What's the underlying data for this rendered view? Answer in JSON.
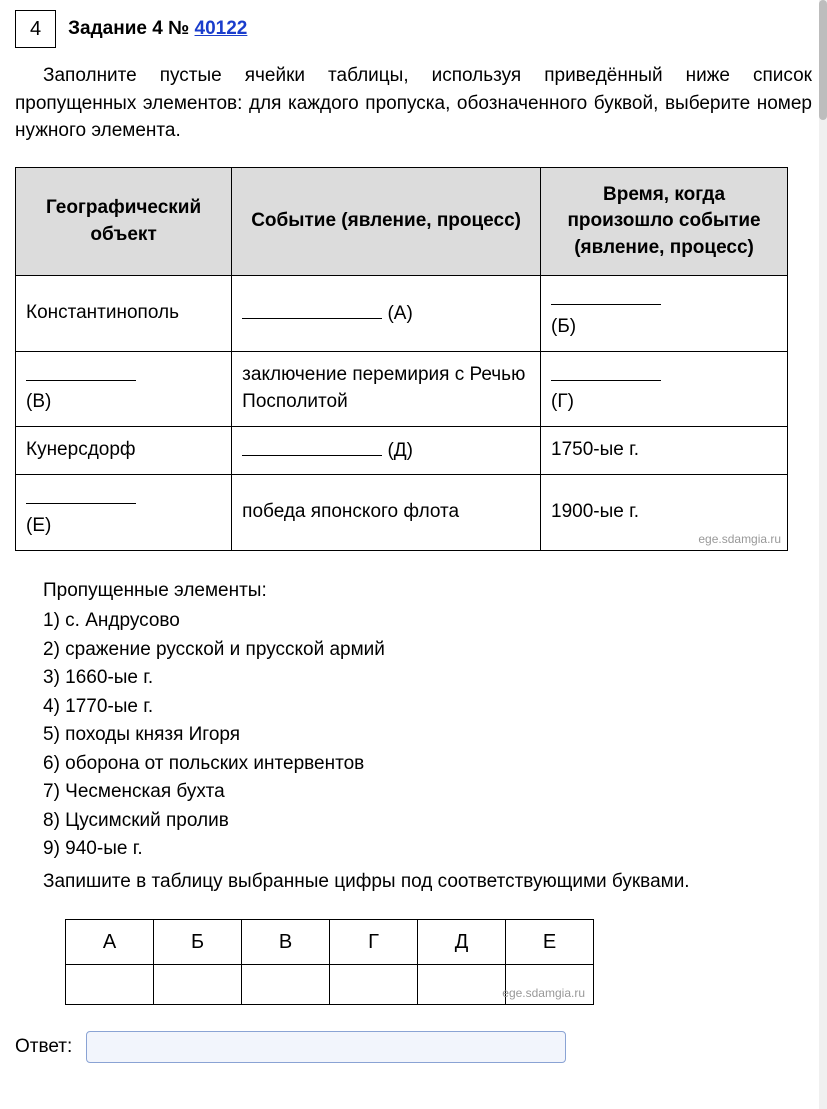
{
  "header": {
    "number": "4",
    "title_prefix": "Задание 4 № ",
    "link_text": "40122"
  },
  "instruction": "Заполните пустые ячейки таблицы, используя приведённый ниже список пропущенных элементов: для каждого пропуска, обозначенного буквой, выберите номер нужного элемента.",
  "main_table": {
    "headers": [
      "Географический объект",
      "Событие (явление, процесс)",
      "Время, когда произошло событие (явление, процесс)"
    ],
    "rows": [
      {
        "col1_text": "Константинополь",
        "col1_letter": "",
        "col2_text": "",
        "col2_letter": "(А)",
        "col3_text": "",
        "col3_letter": "(Б)"
      },
      {
        "col1_text": "",
        "col1_letter": "(В)",
        "col2_text": "заключение перемирия с Речью Посполитой",
        "col2_letter": "",
        "col3_text": "",
        "col3_letter": "(Г)"
      },
      {
        "col1_text": "Кунерсдорф",
        "col1_letter": "",
        "col2_text": "",
        "col2_letter": "(Д)",
        "col3_text": "1750-ые г.",
        "col3_letter": ""
      },
      {
        "col1_text": "",
        "col1_letter": "(Е)",
        "col2_text": "победа японского флота",
        "col2_letter": "",
        "col3_text": "1900-ые г.",
        "col3_letter": ""
      }
    ],
    "watermark": "ege.sdamgia.ru"
  },
  "elements": {
    "title": "Пропущенные элементы:",
    "items": [
      "1) с. Андрусово",
      "2) сражение русской и прусской армий",
      "3) 1660-ые г.",
      "4) 1770-ые г.",
      "5) походы князя Игоря",
      "6) оборона от польских интервентов",
      "7) Чесменская бухта",
      "8) Цусимский пролив",
      "9) 940-ые г."
    ]
  },
  "footer_instruction": "Запишите в таблицу выбранные цифры под соответствующими буквами.",
  "answer_table": {
    "headers": [
      "А",
      "Б",
      "В",
      "Г",
      "Д",
      "Е"
    ],
    "watermark": "ege.sdamgia.ru"
  },
  "answer": {
    "label": "Ответ:",
    "value": ""
  }
}
